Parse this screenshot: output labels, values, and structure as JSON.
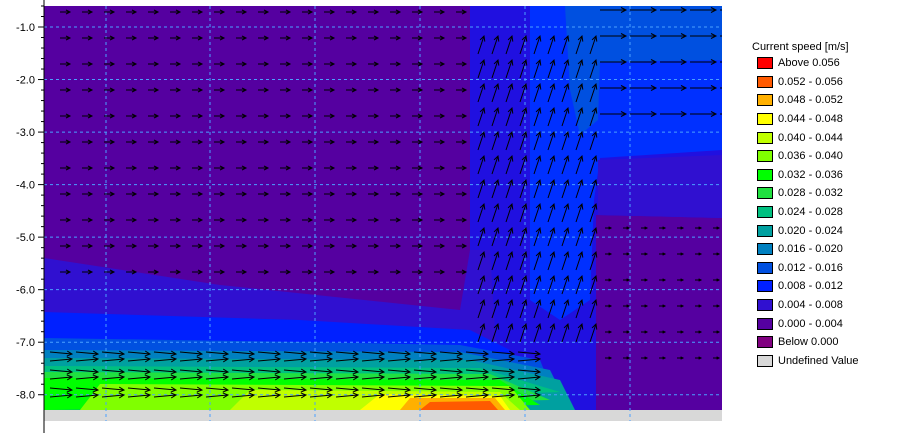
{
  "chart_data": {
    "type": "heatmap",
    "ylim": [
      -8.5,
      -0.6
    ],
    "y_ticks": [
      "-1.0",
      "-2.0",
      "-3.0",
      "-4.0",
      "-5.0",
      "-6.0",
      "-7.0",
      "-8.0"
    ],
    "legend": {
      "title": "Current speed [m/s]",
      "placement": "right",
      "entries": [
        {
          "label": "Above  0.056",
          "color": "#ff0000"
        },
        {
          "label": "0.052 - 0.056",
          "color": "#ff5a00"
        },
        {
          "label": "0.048 - 0.052",
          "color": "#ffb000"
        },
        {
          "label": "0.044 - 0.048",
          "color": "#ffff00"
        },
        {
          "label": "0.040 - 0.044",
          "color": "#c0ff00"
        },
        {
          "label": "0.036 - 0.040",
          "color": "#80ff00"
        },
        {
          "label": "0.032 - 0.036",
          "color": "#00ff00"
        },
        {
          "label": "0.028 - 0.032",
          "color": "#20e040"
        },
        {
          "label": "0.024 - 0.028",
          "color": "#00c080"
        },
        {
          "label": "0.020 - 0.024",
          "color": "#00a0a0"
        },
        {
          "label": "0.016 - 0.020",
          "color": "#0080c0"
        },
        {
          "label": "0.012 - 0.016",
          "color": "#0050e0"
        },
        {
          "label": "0.008 - 0.012",
          "color": "#0020ff"
        },
        {
          "label": "0.004 - 0.008",
          "color": "#3010d0"
        },
        {
          "label": "0.000 - 0.004",
          "color": "#5500a0"
        },
        {
          "label": "Below  0.000",
          "color": "#800080"
        },
        {
          "label": "Undefined Value",
          "color": "#d8d8d8"
        }
      ]
    },
    "grid": true
  }
}
